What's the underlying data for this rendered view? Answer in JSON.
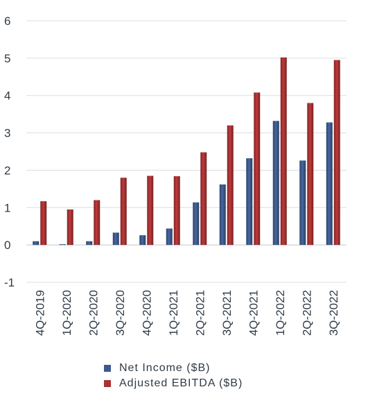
{
  "chart_data": {
    "type": "bar",
    "categories": [
      "4Q-2019",
      "1Q-2020",
      "2Q-2020",
      "3Q-2020",
      "4Q-2020",
      "1Q-2021",
      "2Q-2021",
      "3Q-2021",
      "4Q-2021",
      "1Q-2022",
      "2Q-2022",
      "3Q-2022"
    ],
    "series": [
      {
        "name": "Net Income ($B)",
        "color": "#3d5a8c",
        "values": [
          0.1,
          0.02,
          0.1,
          0.33,
          0.26,
          0.44,
          1.14,
          1.62,
          2.32,
          3.32,
          2.26,
          3.28
        ]
      },
      {
        "name": "Adjusted EBITDA ($B)",
        "color": "#a83232",
        "values": [
          1.17,
          0.95,
          1.2,
          1.8,
          1.85,
          1.84,
          2.48,
          3.2,
          4.08,
          5.02,
          3.8,
          4.95
        ]
      }
    ],
    "yticks": [
      "6",
      "5",
      "4",
      "3",
      "2",
      "1",
      "0",
      "-1"
    ],
    "ylim": [
      -1,
      6
    ],
    "grid": true,
    "legend_position": "bottom"
  }
}
